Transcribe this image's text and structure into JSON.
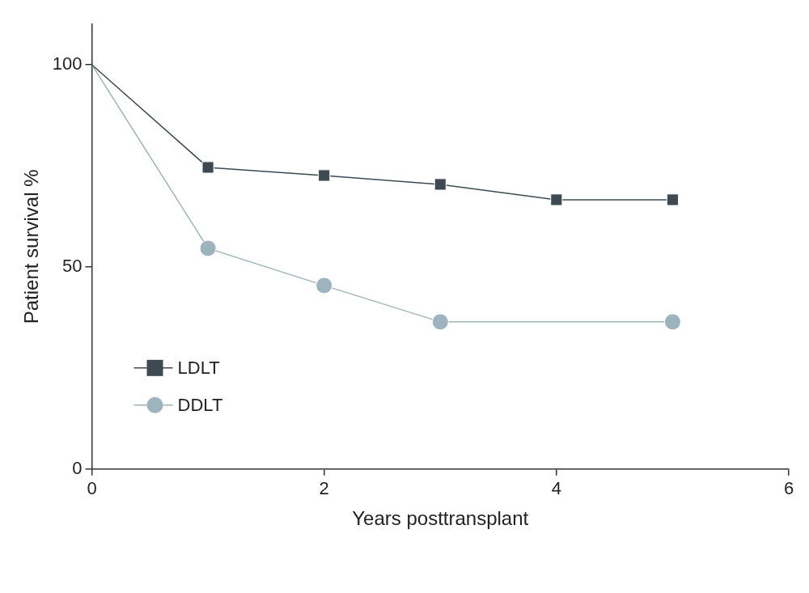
{
  "chart_data": {
    "type": "line",
    "x_label": "Years posttransplant",
    "y_label": "Patient survival %",
    "xlim": [
      0,
      6
    ],
    "xticks": [
      0,
      2,
      4,
      6
    ],
    "ylim": [
      0,
      110
    ],
    "yticks": [
      0,
      50,
      100
    ],
    "grid": false,
    "legend": "lower left",
    "series": [
      {
        "name": "LDLT",
        "color": "#3d4a52",
        "marker": "square",
        "line_style": "solid",
        "x": [
          0,
          1,
          2,
          3,
          4,
          5
        ],
        "values": [
          100,
          74.6,
          72.6,
          70.4,
          66.6,
          66.6
        ]
      },
      {
        "name": "DDLT",
        "color": "#9db4be",
        "marker": "circle",
        "line_style": "solid",
        "x": [
          0,
          1,
          2,
          3,
          5
        ],
        "values": [
          100,
          54.6,
          45.4,
          36.4,
          36.4
        ]
      }
    ]
  }
}
